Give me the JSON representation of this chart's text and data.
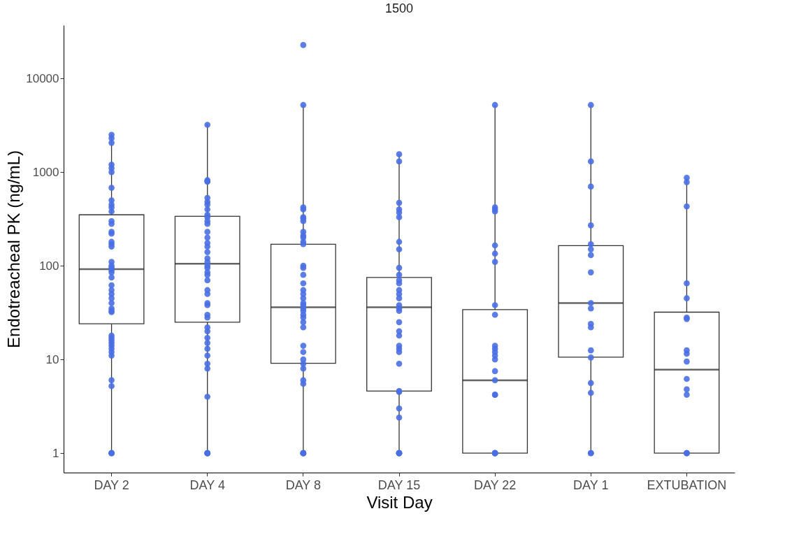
{
  "chart_data": {
    "type": "box",
    "title": "1500",
    "xlabel": "Visit Day",
    "ylabel": "Endotreacheal PK (ng/mL)",
    "categories": [
      "DAY 2",
      "DAY 4",
      "DAY 8",
      "DAY 15",
      "DAY 22",
      "DAY 1",
      "EXTUBATION"
    ],
    "log": true,
    "ylim": [
      0.62,
      37000
    ],
    "yticks": [
      1,
      10,
      100,
      1000,
      10000
    ],
    "grid": false,
    "boxes": [
      {
        "low": 1,
        "q1": 24,
        "median": 92,
        "q3": 350,
        "high": 2540
      },
      {
        "low": 1,
        "q1": 25,
        "median": 105,
        "q3": 337,
        "high": 3290
      },
      {
        "low": 1,
        "q1": 9.1,
        "median": 36,
        "q3": 170,
        "high": 5200
      },
      {
        "low": 1,
        "q1": 4.6,
        "median": 36,
        "q3": 75,
        "high": 1550
      },
      {
        "low": 1,
        "q1": 1,
        "median": 6,
        "q3": 34,
        "high": 5200
      },
      {
        "low": 1,
        "q1": 10.6,
        "median": 40,
        "q3": 164,
        "high": 5200
      },
      {
        "low": 1,
        "q1": 1,
        "median": 7.8,
        "q3": 32,
        "high": 865
      }
    ],
    "series": [
      {
        "type": "scatter",
        "color": "#4a6fe3",
        "marker": "circle",
        "x": [
          "DAY 2",
          "DAY 2",
          "DAY 2",
          "DAY 2",
          "DAY 2",
          "DAY 2",
          "DAY 2",
          "DAY 2",
          "DAY 2",
          "DAY 2",
          "DAY 2",
          "DAY 2",
          "DAY 2",
          "DAY 2",
          "DAY 2",
          "DAY 2",
          "DAY 2",
          "DAY 2",
          "DAY 2",
          "DAY 2",
          "DAY 2",
          "DAY 2",
          "DAY 2",
          "DAY 2",
          "DAY 2",
          "DAY 2",
          "DAY 2",
          "DAY 2",
          "DAY 2",
          "DAY 2",
          "DAY 2",
          "DAY 2",
          "DAY 2",
          "DAY 2",
          "DAY 2",
          "DAY 2",
          "DAY 2",
          "DAY 2",
          "DAY 2",
          "DAY 2",
          "DAY 2",
          "DAY 2",
          "DAY 2",
          "DAY 2",
          "DAY 2",
          "DAY 4",
          "DAY 4",
          "DAY 4",
          "DAY 4",
          "DAY 4",
          "DAY 4",
          "DAY 4",
          "DAY 4",
          "DAY 4",
          "DAY 4",
          "DAY 4",
          "DAY 4",
          "DAY 4",
          "DAY 4",
          "DAY 4",
          "DAY 4",
          "DAY 4",
          "DAY 4",
          "DAY 4",
          "DAY 4",
          "DAY 4",
          "DAY 4",
          "DAY 4",
          "DAY 4",
          "DAY 4",
          "DAY 4",
          "DAY 4",
          "DAY 4",
          "DAY 4",
          "DAY 4",
          "DAY 4",
          "DAY 4",
          "DAY 4",
          "DAY 4",
          "DAY 4",
          "DAY 4",
          "DAY 4",
          "DAY 4",
          "DAY 4",
          "DAY 4",
          "DAY 4",
          "DAY 4",
          "DAY 4",
          "DAY 8",
          "DAY 8",
          "DAY 8",
          "DAY 8",
          "DAY 8",
          "DAY 8",
          "DAY 8",
          "DAY 8",
          "DAY 8",
          "DAY 8",
          "DAY 8",
          "DAY 8",
          "DAY 8",
          "DAY 8",
          "DAY 8",
          "DAY 8",
          "DAY 8",
          "DAY 8",
          "DAY 8",
          "DAY 8",
          "DAY 8",
          "DAY 8",
          "DAY 8",
          "DAY 8",
          "DAY 8",
          "DAY 8",
          "DAY 8",
          "DAY 8",
          "DAY 8",
          "DAY 8",
          "DAY 8",
          "DAY 8",
          "DAY 8",
          "DAY 8",
          "DAY 8",
          "DAY 8",
          "DAY 8",
          "DAY 8",
          "DAY 15",
          "DAY 15",
          "DAY 15",
          "DAY 15",
          "DAY 15",
          "DAY 15",
          "DAY 15",
          "DAY 15",
          "DAY 15",
          "DAY 15",
          "DAY 15",
          "DAY 15",
          "DAY 15",
          "DAY 15",
          "DAY 15",
          "DAY 15",
          "DAY 15",
          "DAY 15",
          "DAY 15",
          "DAY 15",
          "DAY 15",
          "DAY 15",
          "DAY 15",
          "DAY 15",
          "DAY 15",
          "DAY 15",
          "DAY 15",
          "DAY 15",
          "DAY 15",
          "DAY 15",
          "DAY 15",
          "DAY 15",
          "DAY 15",
          "DAY 22",
          "DAY 22",
          "DAY 22",
          "DAY 22",
          "DAY 22",
          "DAY 22",
          "DAY 22",
          "DAY 22",
          "DAY 22",
          "DAY 22",
          "DAY 22",
          "DAY 22",
          "DAY 22",
          "DAY 22",
          "DAY 22",
          "DAY 22",
          "DAY 22",
          "DAY 22",
          "DAY 22",
          "DAY 22",
          "DAY 22",
          "DAY 22",
          "DAY 22",
          "DAY 1",
          "DAY 1",
          "DAY 1",
          "DAY 1",
          "DAY 1",
          "DAY 1",
          "DAY 1",
          "DAY 1",
          "DAY 1",
          "DAY 1",
          "DAY 1",
          "DAY 1",
          "DAY 1",
          "DAY 1",
          "DAY 1",
          "DAY 1",
          "DAY 1",
          "DAY 1",
          "EXTUBATION",
          "EXTUBATION",
          "EXTUBATION",
          "EXTUBATION",
          "EXTUBATION",
          "EXTUBATION",
          "EXTUBATION",
          "EXTUBATION",
          "EXTUBATION",
          "EXTUBATION",
          "EXTUBATION",
          "EXTUBATION",
          "EXTUBATION",
          "EXTUBATION",
          "EXTUBATION",
          "EXTUBATION"
        ],
        "values": [
          2500,
          2300,
          2050,
          1200,
          1100,
          1000,
          680,
          500,
          450,
          420,
          380,
          300,
          280,
          230,
          220,
          180,
          170,
          160,
          110,
          100,
          95,
          90,
          85,
          75,
          62,
          55,
          50,
          45,
          40,
          35,
          33,
          32,
          18,
          17,
          16,
          15,
          14,
          13,
          12,
          11,
          6,
          5.2,
          1,
          1,
          1,
          3200,
          820,
          800,
          790,
          530,
          480,
          450,
          400,
          350,
          330,
          300,
          280,
          230,
          200,
          175,
          160,
          140,
          120,
          110,
          100,
          95,
          85,
          80,
          70,
          55,
          50,
          40,
          38,
          30,
          28,
          22,
          20,
          17,
          15,
          13,
          11,
          9,
          8,
          4,
          1,
          1,
          1,
          1,
          22700,
          5200,
          420,
          400,
          330,
          320,
          300,
          230,
          210,
          200,
          180,
          170,
          100,
          95,
          80,
          65,
          55,
          50,
          45,
          40,
          38,
          35,
          33,
          30,
          28,
          25,
          22,
          14,
          12,
          10,
          9,
          8,
          6,
          5.5,
          1,
          1,
          1,
          1,
          1550,
          1300,
          470,
          400,
          370,
          330,
          180,
          150,
          95,
          80,
          70,
          65,
          55,
          50,
          45,
          38,
          35,
          33,
          25,
          20,
          18,
          14,
          13,
          12,
          9,
          4.6,
          4.5,
          3,
          2.4,
          1,
          1,
          1,
          1,
          5200,
          420,
          400,
          380,
          165,
          135,
          110,
          38,
          30,
          14,
          13,
          12,
          11,
          10,
          7.5,
          6,
          4.2,
          4.2,
          1,
          1,
          1,
          1,
          1,
          5200,
          1300,
          700,
          270,
          170,
          150,
          130,
          85,
          40,
          35,
          24,
          22,
          12.5,
          10.5,
          5.6,
          4.4,
          1,
          1,
          870,
          780,
          430,
          65,
          45,
          28,
          27,
          12.5,
          11.5,
          9.5,
          6.2,
          4.8,
          4.2,
          1,
          1,
          1
        ]
      }
    ]
  }
}
